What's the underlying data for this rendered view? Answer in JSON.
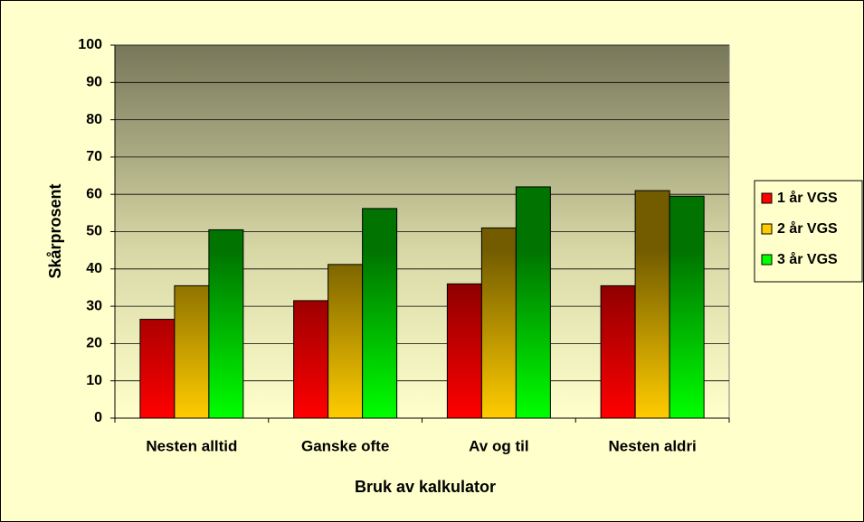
{
  "chart_data": {
    "type": "bar",
    "x_label": "Bruk av kalkulator",
    "y_label": "Skårprosent",
    "categories": [
      "Nesten alltid",
      "Ganske ofte",
      "Av og til",
      "Nesten aldri"
    ],
    "series": [
      {
        "name": "1 år VGS",
        "color": "#ff0000",
        "values": [
          26.5,
          31.5,
          36,
          35.5
        ]
      },
      {
        "name": "2 år VGS",
        "color": "#ffcc00",
        "values": [
          35.5,
          41.2,
          51,
          61
        ]
      },
      {
        "name": "3 år VGS",
        "color": "#00ff00",
        "values": [
          50.5,
          56.2,
          62,
          59.5
        ]
      }
    ],
    "ylim": [
      0,
      100
    ],
    "yticks": [
      0,
      10,
      20,
      30,
      40,
      50,
      60,
      70,
      80,
      90,
      100
    ],
    "grid": true,
    "legend": "right"
  }
}
